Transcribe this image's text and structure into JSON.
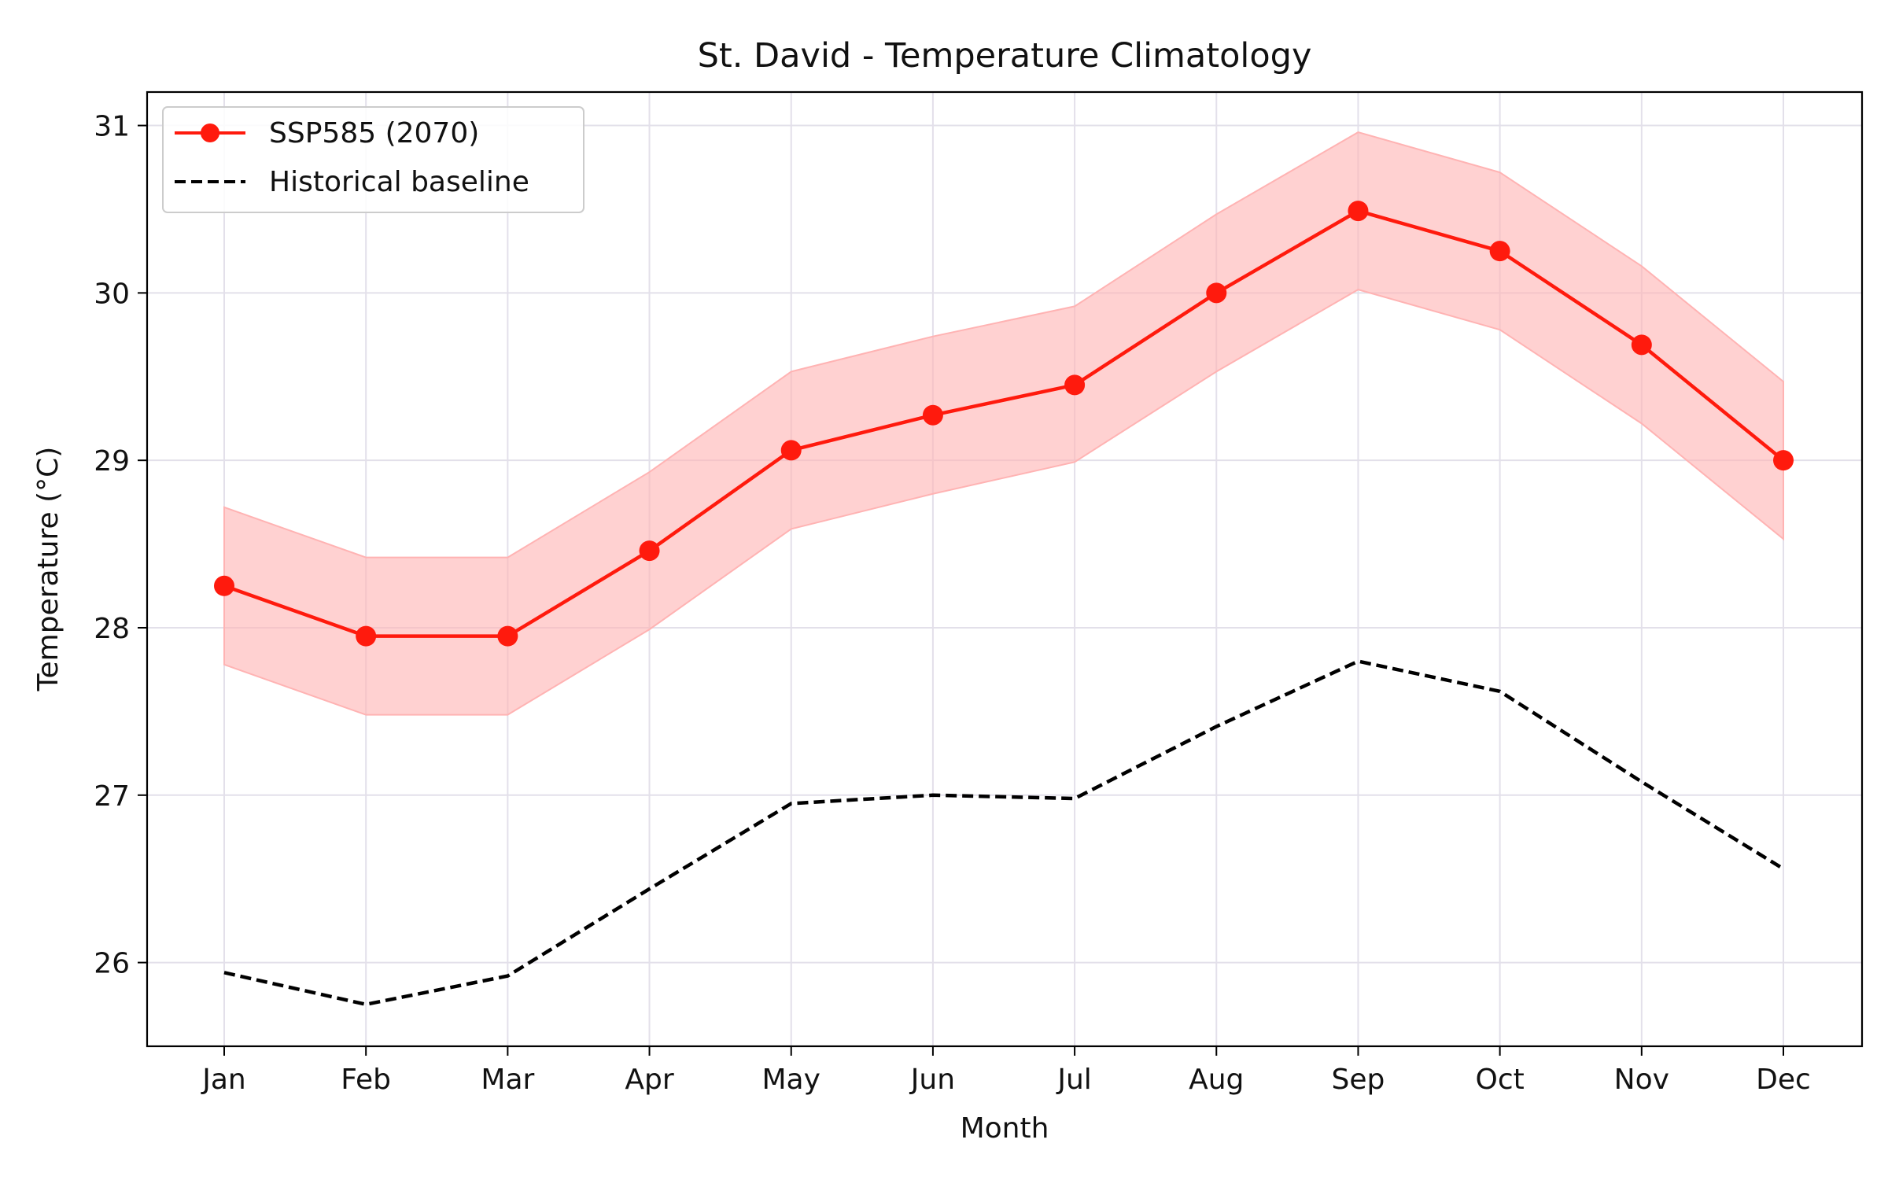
{
  "chart_data": {
    "type": "line",
    "title": "St. David - Temperature Climatology",
    "xlabel": "Month",
    "ylabel": "Temperature (°C)",
    "categories": [
      "Jan",
      "Feb",
      "Mar",
      "Apr",
      "May",
      "Jun",
      "Jul",
      "Aug",
      "Sep",
      "Oct",
      "Nov",
      "Dec"
    ],
    "ylim": [
      25.5,
      31.2
    ],
    "yticks": [
      26,
      27,
      28,
      29,
      30,
      31
    ],
    "grid": true,
    "legend_position": "top-left",
    "series": [
      {
        "name": "SSP585 (2070)",
        "style": "solid-marker",
        "color": "#ff1a0d",
        "values": [
          28.25,
          27.95,
          27.95,
          28.46,
          29.06,
          29.27,
          29.45,
          30.0,
          30.49,
          30.25,
          29.69,
          29.0
        ],
        "band_lower": [
          27.78,
          27.48,
          27.48,
          27.99,
          28.59,
          28.8,
          28.99,
          29.53,
          30.02,
          29.78,
          29.22,
          28.53
        ],
        "band_upper": [
          28.72,
          28.42,
          28.42,
          28.93,
          29.53,
          29.74,
          29.92,
          30.47,
          30.96,
          30.72,
          30.16,
          29.47
        ],
        "band_color": "#ffb3b3"
      },
      {
        "name": "Historical baseline",
        "style": "dashed",
        "color": "#000000",
        "values": [
          25.94,
          25.75,
          25.92,
          26.44,
          26.95,
          27.0,
          26.98,
          27.41,
          27.8,
          27.62,
          27.08,
          26.56
        ]
      }
    ]
  }
}
